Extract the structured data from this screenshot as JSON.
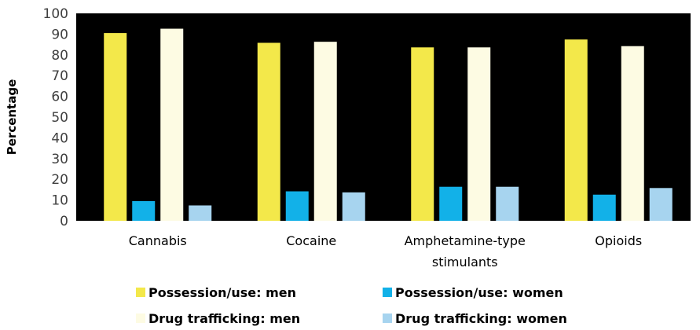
{
  "chart_data": {
    "type": "bar",
    "title": "",
    "xlabel": "",
    "ylabel": "Percentage",
    "ylim": [
      0,
      100
    ],
    "yticks": [
      0,
      10,
      20,
      30,
      40,
      50,
      60,
      70,
      80,
      90,
      100
    ],
    "grid": false,
    "plot_background": "#000000",
    "legend_position": "bottom",
    "categories": [
      [
        "Cannabis"
      ],
      [
        "Cocaine"
      ],
      [
        "Amphetamine-type",
        "stimulants"
      ],
      [
        "Opioids"
      ]
    ],
    "series": [
      {
        "name": "Possession/use: men",
        "color": "#f3e84a",
        "values": [
          90.5,
          85.8,
          83.6,
          87.4
        ]
      },
      {
        "name": "Possession/use: women",
        "color": "#12b1e8",
        "values": [
          9.5,
          14.2,
          16.4,
          12.6
        ]
      },
      {
        "name": "Drug trafficking: men",
        "color": "#fdfbe3",
        "values": [
          92.6,
          86.3,
          83.6,
          84.2
        ]
      },
      {
        "name": "Drug trafficking: women",
        "color": "#a7d4ef",
        "values": [
          7.4,
          13.7,
          16.4,
          15.8
        ]
      }
    ]
  }
}
